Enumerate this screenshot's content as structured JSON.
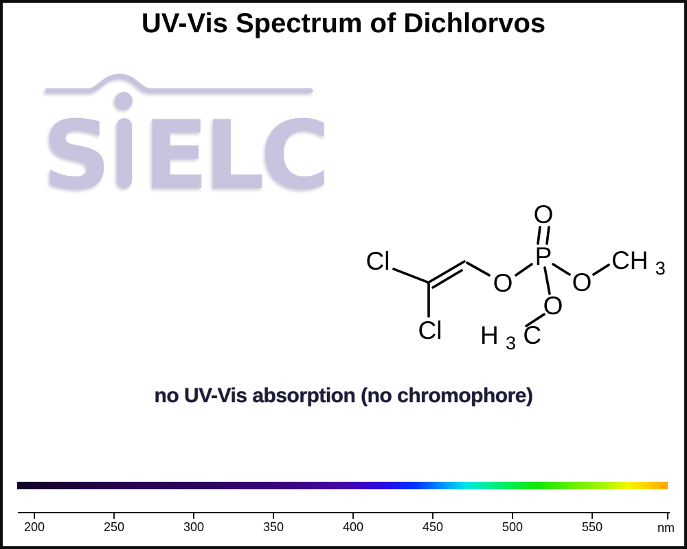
{
  "title": "UV-Vis Spectrum of Dichlorvos",
  "note": "no UV-Vis absorption (no chromophore)",
  "watermark": {
    "brand": "SiELC",
    "s": "S",
    "elc": "ELC",
    "color": "#c7c4df"
  },
  "molecule": {
    "name": "Dichlorvos structure",
    "atoms": {
      "cl_top": "Cl",
      "cl_bottom": "Cl",
      "o_bridge": "O",
      "p": "P",
      "o_double": "O",
      "o_right": "O",
      "o_bottom": "O",
      "ch3_main": "CH",
      "ch3_sub": "3",
      "h3c_h": "H",
      "h3c_sub": "3",
      "h3c_c": "C"
    }
  },
  "axis": {
    "ticks": [
      "200",
      "250",
      "300",
      "350",
      "400",
      "450",
      "500",
      "550"
    ],
    "unit": "nm"
  },
  "chart_data": {
    "type": "line",
    "title": "UV-Vis Spectrum of Dichlorvos",
    "xlabel": "nm",
    "ylabel": "",
    "x_ticks": [
      200,
      250,
      300,
      350,
      400,
      450,
      500,
      550
    ],
    "x_range_nm": [
      189,
      595
    ],
    "series": [],
    "annotation": "no UV-Vis absorption (no chromophore)",
    "grid": false,
    "legend": "none",
    "colorbar_stops": [
      {
        "pos": 0,
        "color": "#130026"
      },
      {
        "pos": 15,
        "color": "#26044c"
      },
      {
        "pos": 30,
        "color": "#2f0560"
      },
      {
        "pos": 42,
        "color": "#3a0680"
      },
      {
        "pos": 50,
        "color": "#4607a8"
      },
      {
        "pos": 56,
        "color": "#2a07e0"
      },
      {
        "pos": 61,
        "color": "#0030ff"
      },
      {
        "pos": 66,
        "color": "#00a0ff"
      },
      {
        "pos": 69,
        "color": "#00e6e6"
      },
      {
        "pos": 72,
        "color": "#00efa0"
      },
      {
        "pos": 75,
        "color": "#00f060"
      },
      {
        "pos": 80,
        "color": "#10e800"
      },
      {
        "pos": 85,
        "color": "#60ee00"
      },
      {
        "pos": 90,
        "color": "#a8f400"
      },
      {
        "pos": 94,
        "color": "#f2f800"
      },
      {
        "pos": 97,
        "color": "#ffd000"
      },
      {
        "pos": 100,
        "color": "#ffa200"
      }
    ]
  }
}
